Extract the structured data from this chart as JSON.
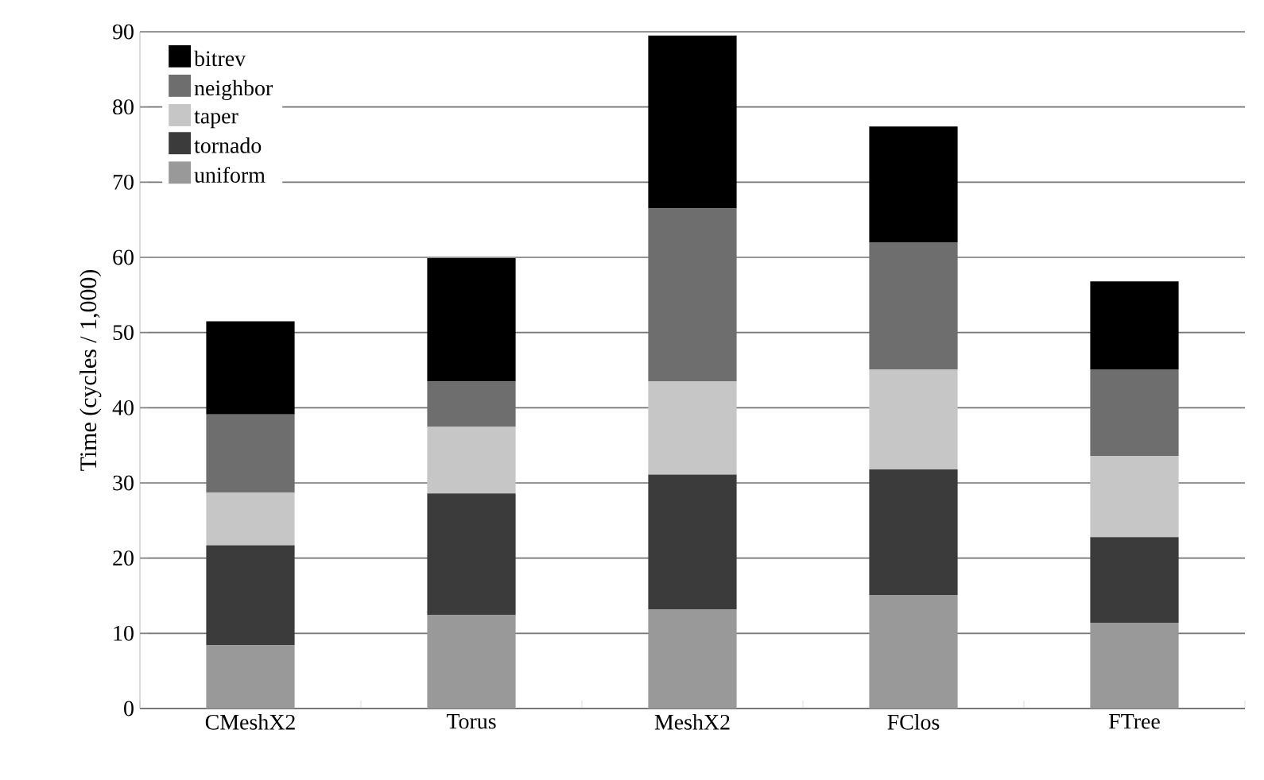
{
  "chart_data": {
    "type": "bar",
    "stacked": true,
    "ylabel": "Time (cycles / 1,000)",
    "categories": [
      "CMeshX2",
      "Torus",
      "MeshX2",
      "FClos",
      "FTree"
    ],
    "series": [
      {
        "name": "uniform",
        "color": "#999999",
        "values": [
          8.4,
          12.4,
          13.2,
          15.1,
          11.4
        ]
      },
      {
        "name": "tornado",
        "color": "#3b3b3b",
        "values": [
          13.3,
          16.2,
          17.9,
          16.7,
          11.4
        ]
      },
      {
        "name": "taper",
        "color": "#c6c6c6",
        "values": [
          7.0,
          8.9,
          12.4,
          13.3,
          10.8
        ]
      },
      {
        "name": "neighbor",
        "color": "#6e6e6e",
        "values": [
          10.4,
          6.0,
          23.0,
          16.9,
          11.5
        ]
      },
      {
        "name": "bitrev",
        "color": "#000000",
        "values": [
          12.4,
          16.4,
          23.0,
          15.4,
          11.7
        ]
      }
    ],
    "ylim": [
      0,
      90
    ],
    "yticks": [
      0,
      10,
      20,
      30,
      40,
      50,
      60,
      70,
      80,
      90
    ],
    "grid": "y",
    "legend": "top left"
  }
}
